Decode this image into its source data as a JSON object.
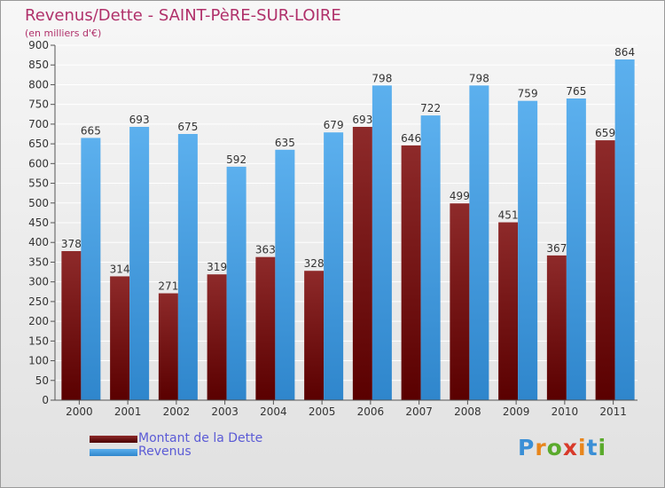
{
  "header": {
    "title": "Revenus/Dette - SAINT-PèRE-SUR-LOIRE",
    "subtitle": "(en milliers d'€)"
  },
  "legend": {
    "debt_label": "Montant de la Dette",
    "revenue_label": "Revenus"
  },
  "logo": {
    "text": "Proxiti",
    "letters": [
      "P",
      "r",
      "o",
      "x",
      "i",
      "t",
      "i"
    ],
    "letter_colors": [
      "#3a8fd6",
      "#e8861c",
      "#5aaa2c",
      "#d83a2a",
      "#e8861c",
      "#3a8fd6",
      "#5aaa2c"
    ]
  },
  "colors": {
    "debt": "#7a1b1b",
    "revenue": "#4aa3e6",
    "title": "#b0306a",
    "legend_text": "#5b5bd6"
  },
  "chart_data": {
    "type": "bar",
    "title": "Revenus/Dette - SAINT-PèRE-SUR-LOIRE",
    "subtitle": "(en milliers d'€)",
    "categories": [
      "2000",
      "2001",
      "2002",
      "2003",
      "2004",
      "2005",
      "2006",
      "2007",
      "2008",
      "2009",
      "2010",
      "2011"
    ],
    "series": [
      {
        "name": "Montant de la Dette",
        "values": [
          378,
          314,
          271,
          319,
          363,
          328,
          693,
          646,
          499,
          451,
          367,
          659
        ]
      },
      {
        "name": "Revenus",
        "values": [
          665,
          693,
          675,
          592,
          635,
          679,
          798,
          722,
          798,
          759,
          765,
          864
        ]
      }
    ],
    "ylim": [
      0,
      900
    ],
    "yticks": [
      0,
      50,
      100,
      150,
      200,
      250,
      300,
      350,
      400,
      450,
      500,
      550,
      600,
      650,
      700,
      750,
      800,
      850,
      900
    ],
    "grid": true,
    "legend_position": "bottom-left",
    "data_labels": true
  }
}
